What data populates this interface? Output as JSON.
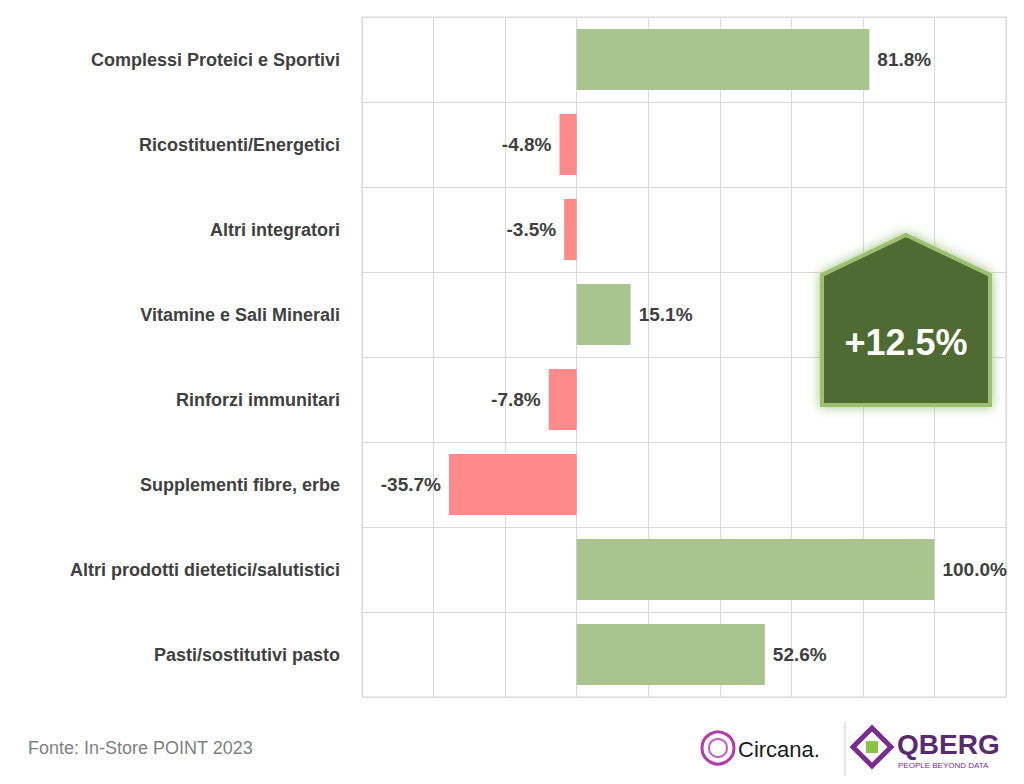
{
  "chart_data": {
    "type": "bar",
    "orientation": "horizontal",
    "categories": [
      "Complessi Proteici e Sportivi",
      "Ricostituenti/Energetici",
      "Altri integratori",
      "Vitamine e Sali Minerali",
      "Rinforzi immunitari",
      "Supplementi fibre, erbe",
      "Altri prodotti dietetici/salutistici",
      "Pasti/sostitutivi pasto"
    ],
    "values": [
      81.8,
      -4.8,
      -3.5,
      15.1,
      -7.8,
      -35.7,
      100.0,
      52.6
    ],
    "value_labels": [
      "81.8%",
      "-4.8%",
      "-3.5%",
      "15.1%",
      "-7.8%",
      "-35.7%",
      "100.0%",
      "52.6%"
    ],
    "colors": [
      "#a9c48f",
      "#ff8a8a",
      "#ff8a8a",
      "#a9c48f",
      "#ff8a8a",
      "#ff8a8a",
      "#a9c48f",
      "#a9c48f"
    ],
    "xlim": [
      -60,
      120
    ],
    "xticks": [
      -60,
      -40,
      -20,
      0,
      20,
      40,
      60,
      80,
      100,
      120
    ],
    "grid": true,
    "tick_labels": "y",
    "data_labels": true,
    "annotation": "+12.5%",
    "source": "Fonte: In-Store POINT 2023",
    "logos": [
      "Circana.",
      "QBERG",
      "PEOPLE BEYOND DATA"
    ]
  }
}
